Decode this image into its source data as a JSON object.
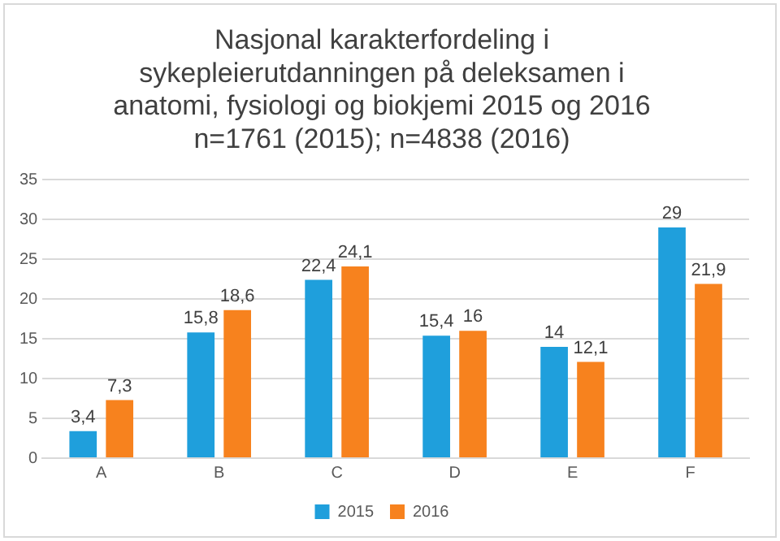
{
  "chart_data": {
    "type": "bar",
    "title": "Nasjonal karakterfordeling i\nsykepleierutdanningen på deleksamen i\nanatomi, fysiologi og biokjemi 2015 og 2016\nn=1761 (2015); n=4838 (2016)",
    "categories": [
      "A",
      "B",
      "C",
      "D",
      "E",
      "F"
    ],
    "series": [
      {
        "name": "2015",
        "color": "#1f9fdc",
        "values": [
          3.4,
          15.8,
          22.4,
          15.4,
          14,
          29
        ],
        "value_labels": [
          "3,4",
          "15,8",
          "22,4",
          "15,4",
          "14",
          "29"
        ]
      },
      {
        "name": "2016",
        "color": "#f7821e",
        "values": [
          7.3,
          18.6,
          24.1,
          16,
          12.1,
          21.9
        ],
        "value_labels": [
          "7,3",
          "18,6",
          "24,1",
          "16",
          "12,1",
          "21,9"
        ]
      }
    ],
    "ylim": [
      0,
      35
    ],
    "yticks": [
      0,
      5,
      10,
      15,
      20,
      25,
      30,
      35
    ],
    "grid": "y",
    "legend": "bottom"
  }
}
